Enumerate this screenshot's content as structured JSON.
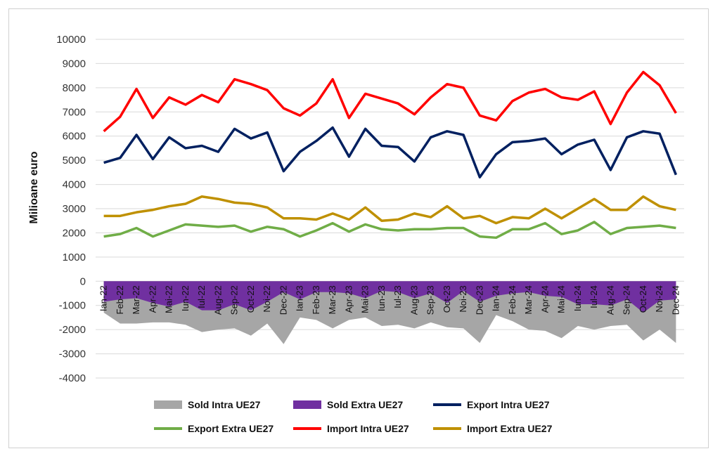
{
  "chart_data": {
    "type": "line",
    "ylabel": "Milioane euro",
    "ylim": [
      -4000,
      10000
    ],
    "yticks": [
      10000,
      9000,
      8000,
      7000,
      6000,
      5000,
      4000,
      3000,
      2000,
      1000,
      0,
      -1000,
      -2000,
      -3000,
      -4000
    ],
    "categories": [
      "Ian-22",
      "Feb-22",
      "Mar-22",
      "Apr-22",
      "Mai-22",
      "Iun-22",
      "Iul-22",
      "Aug-22",
      "Sep-22",
      "Oct-22",
      "Noi-22",
      "Dec-22",
      "Ian-23",
      "Feb-23",
      "Mar-23",
      "Apr-23",
      "Mai-23",
      "Iun-23",
      "Iul-23",
      "Aug-23",
      "Sep-23",
      "Oct-23",
      "Noi-23",
      "Dec-23",
      "Ian-24",
      "Feb-24",
      "Mar-24",
      "Apr-24",
      "Mai-24",
      "Iun-24",
      "Iul-24",
      "Aug-24",
      "Sep-24",
      "Oct-24",
      "Noi-24",
      "Dec-24"
    ],
    "legend_position": "bottom",
    "grid": true,
    "series": [
      {
        "name": "Sold Intra UE27",
        "kind": "area",
        "color": "#a6a6a6",
        "values": [
          -1300,
          -1750,
          -1750,
          -1700,
          -1700,
          -1800,
          -2100,
          -2000,
          -1950,
          -2250,
          -1750,
          -2600,
          -1500,
          -1600,
          -1950,
          -1600,
          -1500,
          -1850,
          -1800,
          -1950,
          -1700,
          -1900,
          -1950,
          -2550,
          -1400,
          -1650,
          -2000,
          -2050,
          -2350,
          -1850,
          -2000,
          -1850,
          -1800,
          -2450,
          -2000,
          -2550
        ]
      },
      {
        "name": "Sold Extra UE27",
        "kind": "area",
        "color": "#7030a0",
        "values": [
          -850,
          -750,
          -700,
          -900,
          -1050,
          -850,
          -1200,
          -1200,
          -950,
          -1200,
          -850,
          -450,
          -750,
          -450,
          -450,
          -500,
          -700,
          -400,
          -450,
          -700,
          -500,
          -900,
          -400,
          -850,
          -600,
          -500,
          -450,
          -600,
          -650,
          -950,
          -950,
          -1000,
          -750,
          -1300,
          -800,
          -750
        ]
      },
      {
        "name": "Export Intra UE27",
        "kind": "line",
        "color": "#002060",
        "values": [
          4900,
          5100,
          6050,
          5050,
          5950,
          5500,
          5600,
          5350,
          6300,
          5900,
          6150,
          4550,
          5350,
          5800,
          6350,
          5150,
          6300,
          5600,
          5550,
          4950,
          5950,
          6200,
          6050,
          4300,
          5250,
          5750,
          5800,
          5900,
          5250,
          5650,
          5850,
          4600,
          5950,
          6200,
          6100,
          4400
        ]
      },
      {
        "name": "Export Extra UE27",
        "kind": "line",
        "color": "#70ad47",
        "values": [
          1850,
          1950,
          2200,
          1850,
          2100,
          2350,
          2300,
          2250,
          2300,
          2050,
          2250,
          2150,
          1850,
          2100,
          2400,
          2050,
          2350,
          2150,
          2100,
          2150,
          2150,
          2200,
          2200,
          1850,
          1800,
          2150,
          2150,
          2400,
          1950,
          2100,
          2450,
          1950,
          2200,
          2250,
          2300,
          2200
        ]
      },
      {
        "name": "Import Intra UE27",
        "kind": "line",
        "color": "#ff0000",
        "values": [
          6200,
          6800,
          7950,
          6750,
          7600,
          7300,
          7700,
          7400,
          8350,
          8150,
          7900,
          7150,
          6850,
          7350,
          8350,
          6750,
          7750,
          7550,
          7350,
          6900,
          7600,
          8150,
          8000,
          6850,
          6650,
          7450,
          7800,
          7950,
          7600,
          7500,
          7850,
          6500,
          7800,
          8650,
          8100,
          6950
        ]
      },
      {
        "name": "Import Extra UE27",
        "kind": "line",
        "color": "#bf9000",
        "values": [
          2700,
          2700,
          2850,
          2950,
          3100,
          3200,
          3500,
          3400,
          3250,
          3200,
          3050,
          2600,
          2600,
          2550,
          2800,
          2550,
          3050,
          2500,
          2550,
          2800,
          2650,
          3100,
          2600,
          2700,
          2400,
          2650,
          2600,
          3000,
          2600,
          3000,
          3400,
          2950,
          2950,
          3500,
          3100,
          2950
        ]
      }
    ]
  }
}
